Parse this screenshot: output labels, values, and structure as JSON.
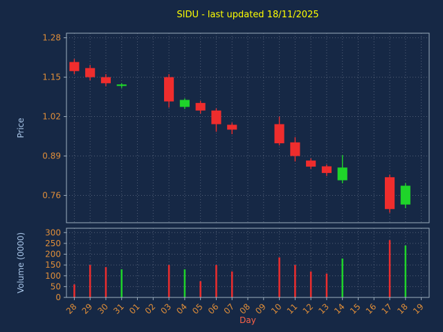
{
  "colors": {
    "background": "#162845",
    "grid": "#55627a",
    "spine": "#9fb0c0",
    "tick_label": "#e08e39",
    "title": "#ffff00",
    "axis_label": "#a9c6e8",
    "xlabel": "#ff6347",
    "up": "#1fd42a",
    "down": "#ef2d2d"
  },
  "chart_data": {
    "type": "candlestick",
    "title": "SIDU - last updated 18/11/2025",
    "xlabel": "Day",
    "ylabel_price": "Price",
    "ylabel_volume": "Volume (0000)",
    "legend": "none",
    "grid": "dotted",
    "categories": [
      "28",
      "29",
      "30",
      "31",
      "01",
      "02",
      "03",
      "04",
      "05",
      "06",
      "07",
      "08",
      "09",
      "10",
      "11",
      "12",
      "13",
      "14",
      "15",
      "16",
      "17",
      "18",
      "19"
    ],
    "price_ticks": [
      1.28,
      1.15,
      1.02,
      0.89,
      0.76
    ],
    "price_ylim": [
      0.67,
      1.295
    ],
    "volume_ticks": [
      0,
      50,
      100,
      150,
      200,
      250,
      300
    ],
    "volume_ylim": [
      0,
      320
    ],
    "candles": [
      {
        "day": "28",
        "open": 1.2,
        "high": 1.21,
        "low": 1.16,
        "close": 1.17,
        "volume": 60
      },
      {
        "day": "29",
        "open": 1.18,
        "high": 1.19,
        "low": 1.14,
        "close": 1.15,
        "volume": 150
      },
      {
        "day": "30",
        "open": 1.15,
        "high": 1.16,
        "low": 1.12,
        "close": 1.13,
        "volume": 140
      },
      {
        "day": "31",
        "open": 1.121,
        "high": 1.13,
        "low": 1.114,
        "close": 1.126,
        "volume": 130
      },
      {
        "day": "03",
        "open": 1.15,
        "high": 1.16,
        "low": 1.05,
        "close": 1.07,
        "volume": 150
      },
      {
        "day": "04",
        "open": 1.052,
        "high": 1.08,
        "low": 1.045,
        "close": 1.075,
        "volume": 130
      },
      {
        "day": "05",
        "open": 1.065,
        "high": 1.072,
        "low": 1.03,
        "close": 1.04,
        "volume": 75
      },
      {
        "day": "06",
        "open": 1.04,
        "high": 1.047,
        "low": 0.97,
        "close": 0.995,
        "volume": 150
      },
      {
        "day": "07",
        "open": 0.993,
        "high": 1.0,
        "low": 0.962,
        "close": 0.977,
        "volume": 120
      },
      {
        "day": "10",
        "open": 0.995,
        "high": 1.02,
        "low": 0.925,
        "close": 0.932,
        "volume": 185
      },
      {
        "day": "11",
        "open": 0.935,
        "high": 0.952,
        "low": 0.872,
        "close": 0.89,
        "volume": 150
      },
      {
        "day": "12",
        "open": 0.875,
        "high": 0.882,
        "low": 0.848,
        "close": 0.855,
        "volume": 120
      },
      {
        "day": "13",
        "open": 0.856,
        "high": 0.862,
        "low": 0.824,
        "close": 0.834,
        "volume": 110
      },
      {
        "day": "14",
        "open": 0.81,
        "high": 0.893,
        "low": 0.8,
        "close": 0.852,
        "volume": 180
      },
      {
        "day": "17",
        "open": 0.82,
        "high": 0.828,
        "low": 0.703,
        "close": 0.715,
        "volume": 265
      },
      {
        "day": "18",
        "open": 0.73,
        "high": 0.8,
        "low": 0.718,
        "close": 0.792,
        "volume": 240
      }
    ]
  }
}
